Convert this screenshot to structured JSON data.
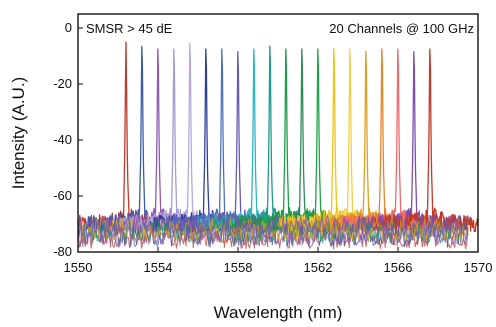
{
  "chart_data": {
    "type": "line",
    "title": "",
    "xlabel": "Wavelength (nm)",
    "ylabel": "Intensity (A.U.)",
    "xlim": [
      1550,
      1570
    ],
    "ylim": [
      -80,
      5
    ],
    "x_ticks": [
      "1550",
      "1554",
      "1558",
      "1562",
      "1566",
      "1570"
    ],
    "y_ticks": [
      "0",
      "-20",
      "-40",
      "-60",
      "-80"
    ],
    "annotations": [
      "SMSR > 45 dE",
      "20 Channels @ 100 GHz"
    ],
    "noise_floor": -70,
    "series": [
      {
        "peak_x": 1552.4,
        "peak_y": -5,
        "color": "#c0392b"
      },
      {
        "peak_x": 1553.2,
        "peak_y": -4,
        "color": "#3b5aa8"
      },
      {
        "peak_x": 1554.0,
        "peak_y": -5,
        "color": "#8e5ab5"
      },
      {
        "peak_x": 1554.8,
        "peak_y": -5,
        "color": "#a89cd0"
      },
      {
        "peak_x": 1555.6,
        "peak_y": -3,
        "color": "#b6a9d9"
      },
      {
        "peak_x": 1556.4,
        "peak_y": -5,
        "color": "#2f3f9a"
      },
      {
        "peak_x": 1557.2,
        "peak_y": -5,
        "color": "#4f6fc0"
      },
      {
        "peak_x": 1558.0,
        "peak_y": -6,
        "color": "#6b58b0"
      },
      {
        "peak_x": 1558.8,
        "peak_y": -5,
        "color": "#2fb3c8"
      },
      {
        "peak_x": 1559.6,
        "peak_y": -4,
        "color": "#1f9a8f"
      },
      {
        "peak_x": 1560.4,
        "peak_y": -5,
        "color": "#1e9c4a"
      },
      {
        "peak_x": 1561.2,
        "peak_y": -5,
        "color": "#2e8b57"
      },
      {
        "peak_x": 1562.0,
        "peak_y": -5,
        "color": "#1fa34a"
      },
      {
        "peak_x": 1562.8,
        "peak_y": -5,
        "color": "#f0c419"
      },
      {
        "peak_x": 1563.6,
        "peak_y": -5,
        "color": "#f2d04a"
      },
      {
        "peak_x": 1564.4,
        "peak_y": -6,
        "color": "#e0a020"
      },
      {
        "peak_x": 1565.2,
        "peak_y": -5,
        "color": "#e8842b"
      },
      {
        "peak_x": 1566.0,
        "peak_y": -5,
        "color": "#f06a6a"
      },
      {
        "peak_x": 1566.8,
        "peak_y": -6,
        "color": "#7b4fb0"
      },
      {
        "peak_x": 1567.6,
        "peak_y": -5,
        "color": "#c0392b"
      }
    ]
  }
}
